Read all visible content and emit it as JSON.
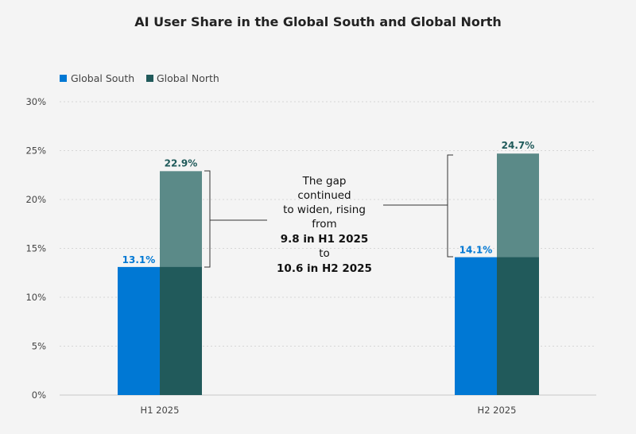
{
  "chart_data": {
    "type": "bar",
    "title": "AI User Share in the Global South and Global North",
    "categories": [
      "H1 2025",
      "H2 2025"
    ],
    "series": [
      {
        "name": "Global South",
        "values": [
          13.1,
          14.1
        ],
        "labels": [
          "13.1%",
          "14.1%"
        ],
        "color": "#0078d4"
      },
      {
        "name": "Global North",
        "values": [
          22.9,
          24.7
        ],
        "labels": [
          "22.9%",
          "24.7%"
        ],
        "color": "#5b8a88",
        "overlap_color": "#215a5b",
        "label_color": "#1f5a5a"
      }
    ],
    "ylim": [
      0,
      30
    ],
    "yticks": [
      "0%",
      "5%",
      "10%",
      "15%",
      "20%",
      "25%",
      "30%"
    ],
    "grid": true,
    "legend": "top-left",
    "annotation": {
      "lines": [
        "The gap",
        "continued",
        "to widen, rising",
        "from"
      ],
      "bold1": "9.8 in H1 2025",
      "mid": "to",
      "bold2": "10.6 in H2 2025"
    }
  }
}
